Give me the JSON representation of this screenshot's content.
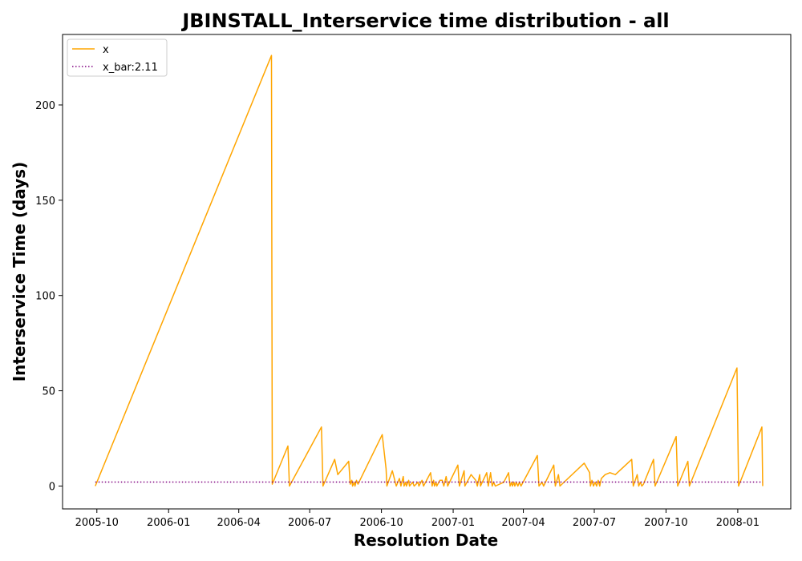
{
  "chart_data": {
    "type": "line",
    "title": "JBINSTALL_Interservice time distribution - all",
    "xlabel": "Resolution Date",
    "ylabel": "Interservice Time (days)",
    "x_ticks": [
      "2005-10",
      "2006-01",
      "2006-04",
      "2006-07",
      "2006-10",
      "2007-01",
      "2007-04",
      "2007-07",
      "2007-10",
      "2008-01"
    ],
    "y_ticks": [
      0,
      50,
      100,
      150,
      200
    ],
    "ylim": [
      -12,
      237
    ],
    "xlim": [
      "2005-08-18",
      "2008-03-09"
    ],
    "grid": false,
    "legend_position": "upper-left",
    "series": [
      {
        "name": "x",
        "color": "#FFA500",
        "style": "solid",
        "points": [
          [
            "2005-09-29",
            0
          ],
          [
            "2006-05-13",
            226
          ],
          [
            "2006-05-14",
            1
          ],
          [
            "2006-06-03",
            21
          ],
          [
            "2006-06-05",
            0
          ],
          [
            "2006-07-16",
            31
          ],
          [
            "2006-07-18",
            0
          ],
          [
            "2006-08-02",
            14
          ],
          [
            "2006-08-06",
            6
          ],
          [
            "2006-08-20",
            13
          ],
          [
            "2006-08-22",
            1
          ],
          [
            "2006-08-24",
            3
          ],
          [
            "2006-08-25",
            0
          ],
          [
            "2006-08-27",
            2
          ],
          [
            "2006-08-28",
            0
          ],
          [
            "2006-08-30",
            3
          ],
          [
            "2006-09-01",
            1
          ],
          [
            "2006-10-02",
            27
          ],
          [
            "2006-10-07",
            9
          ],
          [
            "2006-10-08",
            0
          ],
          [
            "2006-10-15",
            8
          ],
          [
            "2006-10-20",
            0
          ],
          [
            "2006-10-24",
            4
          ],
          [
            "2006-10-26",
            0
          ],
          [
            "2006-10-29",
            5
          ],
          [
            "2006-10-30",
            0
          ],
          [
            "2006-11-01",
            2
          ],
          [
            "2006-11-02",
            0
          ],
          [
            "2006-11-05",
            3
          ],
          [
            "2006-11-06",
            0
          ],
          [
            "2006-11-10",
            2
          ],
          [
            "2006-11-12",
            0
          ],
          [
            "2006-11-17",
            2
          ],
          [
            "2006-11-18",
            0
          ],
          [
            "2006-11-22",
            3
          ],
          [
            "2006-11-24",
            0
          ],
          [
            "2006-12-03",
            7
          ],
          [
            "2006-12-05",
            0
          ],
          [
            "2006-12-07",
            3
          ],
          [
            "2006-12-08",
            0
          ],
          [
            "2006-12-10",
            2
          ],
          [
            "2006-12-11",
            0
          ],
          [
            "2006-12-15",
            3
          ],
          [
            "2006-12-18",
            3
          ],
          [
            "2006-12-20",
            0
          ],
          [
            "2006-12-23",
            5
          ],
          [
            "2006-12-25",
            0
          ],
          [
            "2007-01-07",
            11
          ],
          [
            "2007-01-09",
            0
          ],
          [
            "2007-01-15",
            8
          ],
          [
            "2007-01-16",
            0
          ],
          [
            "2007-01-24",
            6
          ],
          [
            "2007-01-30",
            3
          ],
          [
            "2007-02-01",
            0
          ],
          [
            "2007-02-04",
            6
          ],
          [
            "2007-02-05",
            0
          ],
          [
            "2007-02-13",
            7
          ],
          [
            "2007-02-15",
            0
          ],
          [
            "2007-02-18",
            7
          ],
          [
            "2007-02-20",
            0
          ],
          [
            "2007-02-22",
            2
          ],
          [
            "2007-02-24",
            0
          ],
          [
            "2007-03-07",
            2
          ],
          [
            "2007-03-13",
            7
          ],
          [
            "2007-03-15",
            0
          ],
          [
            "2007-03-17",
            2
          ],
          [
            "2007-03-18",
            0
          ],
          [
            "2007-03-20",
            2
          ],
          [
            "2007-03-21",
            0
          ],
          [
            "2007-03-23",
            2
          ],
          [
            "2007-03-25",
            0
          ],
          [
            "2007-03-27",
            2
          ],
          [
            "2007-03-29",
            0
          ],
          [
            "2007-04-19",
            16
          ],
          [
            "2007-04-21",
            0
          ],
          [
            "2007-04-25",
            2
          ],
          [
            "2007-04-27",
            0
          ],
          [
            "2007-05-10",
            11
          ],
          [
            "2007-05-12",
            0
          ],
          [
            "2007-05-16",
            6
          ],
          [
            "2007-05-18",
            0
          ],
          [
            "2007-06-18",
            12
          ],
          [
            "2007-06-25",
            7
          ],
          [
            "2007-06-26",
            0
          ],
          [
            "2007-06-28",
            3
          ],
          [
            "2007-06-30",
            0
          ],
          [
            "2007-07-02",
            2
          ],
          [
            "2007-07-04",
            0
          ],
          [
            "2007-07-06",
            3
          ],
          [
            "2007-07-08",
            0
          ],
          [
            "2007-07-10",
            4
          ],
          [
            "2007-07-15",
            6
          ],
          [
            "2007-07-21",
            7
          ],
          [
            "2007-07-28",
            6
          ],
          [
            "2007-08-18",
            14
          ],
          [
            "2007-08-20",
            0
          ],
          [
            "2007-08-25",
            6
          ],
          [
            "2007-08-27",
            0
          ],
          [
            "2007-08-29",
            2
          ],
          [
            "2007-08-31",
            0
          ],
          [
            "2007-09-02",
            1
          ],
          [
            "2007-09-15",
            14
          ],
          [
            "2007-09-17",
            0
          ],
          [
            "2007-10-14",
            26
          ],
          [
            "2007-10-16",
            0
          ],
          [
            "2007-10-29",
            13
          ],
          [
            "2007-10-31",
            0
          ],
          [
            "2007-12-31",
            62
          ],
          [
            "2008-01-02",
            0
          ],
          [
            "2008-02-01",
            31
          ],
          [
            "2008-02-02",
            0
          ]
        ]
      },
      {
        "name": "x_bar:2.11",
        "color": "#800080",
        "style": "dotted",
        "points": [
          [
            "2005-09-29",
            2.11
          ],
          [
            "2008-02-02",
            2.11
          ]
        ]
      }
    ]
  }
}
